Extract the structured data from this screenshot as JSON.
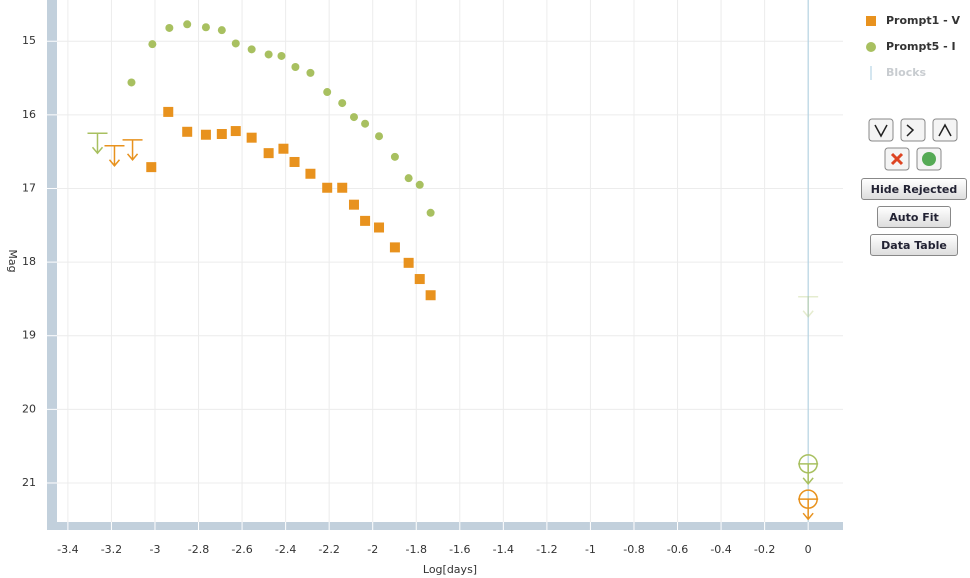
{
  "chart_data": {
    "type": "scatter",
    "xlabel": "Log[days]",
    "ylabel": "Mag",
    "xlim": [
      -3.45,
      0.16
    ],
    "ylim": [
      14.44,
      21.53
    ],
    "y_inverted": true,
    "grid": true,
    "xticks": [
      -3.4,
      -3.2,
      -3,
      -2.8,
      -2.6,
      -2.4,
      -2.2,
      -2,
      -1.8,
      -1.6,
      -1.4,
      -1.2,
      -1,
      -0.8,
      -0.6,
      -0.4,
      -0.2,
      0
    ],
    "yticks": [
      15,
      16,
      17,
      18,
      19,
      20,
      21
    ],
    "series": [
      {
        "name": "Prompt1 - V",
        "color": "#e8921e",
        "marker": "square",
        "x": [
          -3.017,
          -2.939,
          -2.852,
          -2.766,
          -2.693,
          -2.629,
          -2.556,
          -2.478,
          -2.41,
          -2.359,
          -2.286,
          -2.209,
          -2.14,
          -2.086,
          -2.035,
          -1.971,
          -1.898,
          -1.835,
          -1.784,
          -1.734
        ],
        "values": [
          16.71,
          15.96,
          16.23,
          16.27,
          16.26,
          16.22,
          16.31,
          16.52,
          16.46,
          16.64,
          16.8,
          16.99,
          16.99,
          17.22,
          17.44,
          17.53,
          17.8,
          18.01,
          18.23,
          18.45
        ],
        "limits_x": [
          -3.186,
          -3.103,
          0
        ],
        "limits": [
          16.42,
          16.34,
          21.22
        ],
        "limit_circled": [
          false,
          false,
          true
        ],
        "limit_rejected": [
          false,
          false,
          false
        ]
      },
      {
        "name": "Prompt5 - I",
        "color": "#a8c060",
        "marker": "circle",
        "x": [
          -3.108,
          -3.012,
          -2.934,
          -2.852,
          -2.766,
          -2.693,
          -2.629,
          -2.556,
          -2.478,
          -2.419,
          -2.355,
          -2.286,
          -2.209,
          -2.14,
          -2.086,
          -2.035,
          -1.971,
          -1.898,
          -1.835,
          -1.784,
          -1.734
        ],
        "values": [
          15.56,
          15.04,
          14.82,
          14.77,
          14.81,
          14.85,
          15.03,
          15.11,
          15.18,
          15.2,
          15.35,
          15.43,
          15.69,
          15.84,
          16.03,
          16.12,
          16.29,
          16.57,
          16.86,
          16.95,
          17.33
        ],
        "limits_x": [
          -3.264,
          0,
          0
        ],
        "limits": [
          16.25,
          18.47,
          20.74
        ],
        "limit_circled": [
          false,
          false,
          true
        ],
        "limit_rejected": [
          false,
          true,
          false
        ]
      }
    ],
    "blocks_name": "Blocks",
    "blocks_color": "#a9cde0",
    "blocks": [
      0
    ],
    "buttons": [
      "Hide Rejected",
      "Auto Fit",
      "Data Table"
    ]
  }
}
